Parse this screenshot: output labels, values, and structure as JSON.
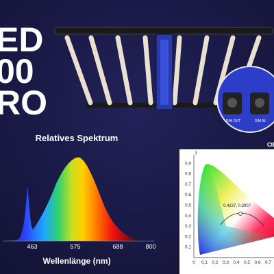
{
  "headline": {
    "lines": [
      "ED",
      "00",
      "RO"
    ]
  },
  "spectrum": {
    "title": "Relatives Spektrum",
    "x_axis_label": "Wellenlänge (nm)",
    "x_ticks": [
      "463",
      "575",
      "688",
      "800"
    ]
  },
  "cie": {
    "title": "CIE",
    "y_axis_label": "y",
    "y_ticks": [
      "0,1",
      "0,2",
      "0,3",
      "0,4",
      "0,5",
      "0,6",
      "0,7",
      "0,8",
      "0,9"
    ],
    "x_ticks": [
      "0",
      "0,1",
      "0,2",
      "0,3",
      "0,4",
      "0,5",
      "0,6",
      "0,7"
    ],
    "point_label": "0.4237, 0.3907"
  },
  "driver_inset": {
    "labels": [
      "DIM OUT",
      "DIM IN"
    ]
  }
}
